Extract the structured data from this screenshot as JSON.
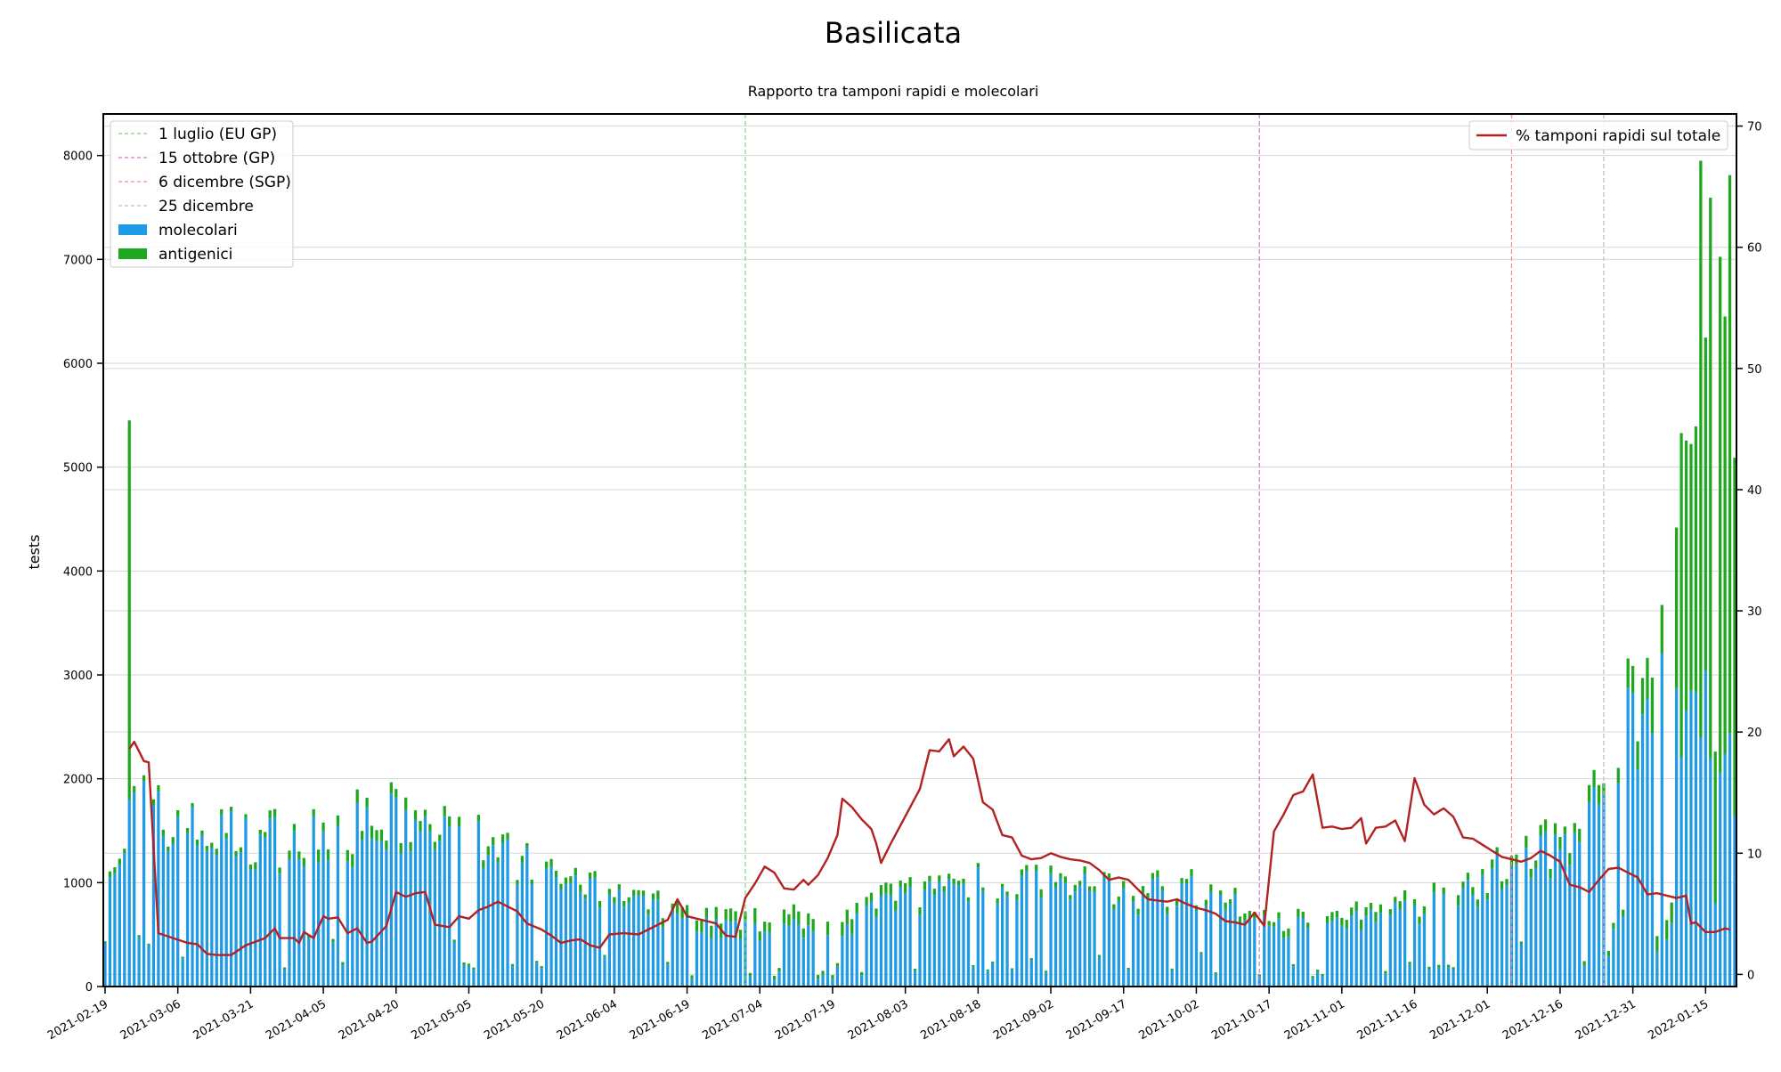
{
  "chart_data": {
    "type": "bar",
    "title": "Basilicata",
    "subtitle": "Rapporto tra tamponi rapidi e molecolari",
    "ylabel": "tests",
    "ylim": [
      0,
      8400
    ],
    "y2lim": [
      -1,
      71
    ],
    "x_start": "2021-02-19",
    "x_end": "2022-01-21",
    "xticks": [
      "2021-02-19",
      "2021-03-06",
      "2021-03-21",
      "2021-04-05",
      "2021-04-20",
      "2021-05-05",
      "2021-05-20",
      "2021-06-04",
      "2021-06-19",
      "2021-07-04",
      "2021-07-19",
      "2021-08-03",
      "2021-08-18",
      "2021-09-02",
      "2021-09-17",
      "2021-10-02",
      "2021-10-17",
      "2021-11-01",
      "2021-11-16",
      "2021-12-01",
      "2021-12-16",
      "2021-12-31",
      "2022-01-15"
    ],
    "yticks": [
      0,
      1000,
      2000,
      3000,
      4000,
      5000,
      6000,
      7000,
      8000
    ],
    "y2ticks": [
      0,
      10,
      20,
      30,
      40,
      50,
      60,
      70
    ],
    "grid": true,
    "legend_left_position": "top-left",
    "legend_right_position": "top-right",
    "vlines": [
      {
        "date": "2021-07-01",
        "label": "1 luglio (EU GP)",
        "color": "#7ccf7c"
      },
      {
        "date": "2021-10-15",
        "label": "15 ottobre (GP)",
        "color": "#c77ec7"
      },
      {
        "date": "2021-12-06",
        "label": "6 dicembre (SGP)",
        "color": "#f08a8a"
      },
      {
        "date": "2021-12-25",
        "label": "25 dicembre",
        "color": "#c9b3c9"
      }
    ],
    "series": [
      {
        "name": "molecolari",
        "color": "#1f9be6"
      },
      {
        "name": "antigenici",
        "color": "#1fa81f"
      },
      {
        "name": "% tamponi rapidi sul totale",
        "color": "#b22222"
      }
    ],
    "anchors_molecolari": [
      [
        "2021-02-19",
        1200
      ],
      [
        "2021-02-23",
        1100
      ],
      [
        "2021-02-24",
        1700
      ],
      [
        "2021-03-06",
        1450
      ],
      [
        "2021-03-21",
        1350
      ],
      [
        "2021-04-05",
        1350
      ],
      [
        "2021-04-20",
        1500
      ],
      [
        "2021-05-05",
        1350
      ],
      [
        "2021-05-20",
        1000
      ],
      [
        "2021-06-04",
        800
      ],
      [
        "2021-06-19",
        600
      ],
      [
        "2021-07-04",
        500
      ],
      [
        "2021-07-19",
        560
      ],
      [
        "2021-08-03",
        820
      ],
      [
        "2021-08-18",
        960
      ],
      [
        "2021-09-02",
        920
      ],
      [
        "2021-09-17",
        820
      ],
      [
        "2021-10-02",
        880
      ],
      [
        "2021-10-17",
        560
      ],
      [
        "2021-11-01",
        560
      ],
      [
        "2021-11-16",
        700
      ],
      [
        "2021-12-01",
        1000
      ],
      [
        "2021-12-16",
        1350
      ],
      [
        "2021-12-24",
        1800
      ],
      [
        "2021-12-31",
        2500
      ],
      [
        "2022-01-07",
        2600
      ],
      [
        "2022-01-10",
        2700
      ],
      [
        "2022-01-15",
        2500
      ],
      [
        "2022-01-21",
        2000
      ]
    ],
    "anchors_total": [
      [
        "2021-02-19",
        1250
      ],
      [
        "2021-02-23",
        1150
      ],
      [
        "2021-02-24",
        1750
      ],
      [
        "2021-03-06",
        1500
      ],
      [
        "2021-03-21",
        1400
      ],
      [
        "2021-04-05",
        1450
      ],
      [
        "2021-04-20",
        1600
      ],
      [
        "2021-05-05",
        1420
      ],
      [
        "2021-05-20",
        1060
      ],
      [
        "2021-06-04",
        850
      ],
      [
        "2021-06-19",
        700
      ],
      [
        "2021-07-04",
        620
      ],
      [
        "2021-07-19",
        680
      ],
      [
        "2021-08-03",
        900
      ],
      [
        "2021-08-18",
        1000
      ],
      [
        "2021-09-02",
        980
      ],
      [
        "2021-09-17",
        880
      ],
      [
        "2021-10-02",
        940
      ],
      [
        "2021-10-17",
        620
      ],
      [
        "2021-11-01",
        640
      ],
      [
        "2021-11-16",
        780
      ],
      [
        "2021-12-01",
        1080
      ],
      [
        "2021-12-16",
        1450
      ],
      [
        "2021-12-24",
        1950
      ],
      [
        "2021-12-31",
        2750
      ],
      [
        "2022-01-04",
        3000
      ],
      [
        "2022-01-08",
        3300
      ],
      [
        "2022-01-10",
        5300
      ],
      [
        "2022-01-13",
        6000
      ],
      [
        "2022-01-16",
        7500
      ],
      [
        "2022-01-19",
        6600
      ],
      [
        "2022-01-21",
        6000
      ]
    ],
    "special_bars": [
      {
        "date": "2021-02-24",
        "molecolari": 1800,
        "antigenici": 3650
      },
      {
        "date": "2022-01-14",
        "molecolari": 2400,
        "antigenici": 5550
      }
    ],
    "percent_line": [
      [
        "2021-02-24",
        18.6
      ],
      [
        "2021-02-25",
        19.2
      ],
      [
        "2021-02-27",
        17.6
      ],
      [
        "2021-02-28",
        17.5
      ],
      [
        "2021-03-02",
        3.4
      ],
      [
        "2021-03-05",
        3.0
      ],
      [
        "2021-03-08",
        2.6
      ],
      [
        "2021-03-10",
        2.5
      ],
      [
        "2021-03-12",
        1.7
      ],
      [
        "2021-03-14",
        1.6
      ],
      [
        "2021-03-17",
        1.6
      ],
      [
        "2021-03-20",
        2.4
      ],
      [
        "2021-03-24",
        3.0
      ],
      [
        "2021-03-26",
        3.8
      ],
      [
        "2021-03-27",
        3.0
      ],
      [
        "2021-03-30",
        3.0
      ],
      [
        "2021-03-31",
        2.6
      ],
      [
        "2021-04-01",
        3.5
      ],
      [
        "2021-04-03",
        3.0
      ],
      [
        "2021-04-05",
        4.8
      ],
      [
        "2021-04-06",
        4.6
      ],
      [
        "2021-04-08",
        4.7
      ],
      [
        "2021-04-10",
        3.4
      ],
      [
        "2021-04-12",
        3.8
      ],
      [
        "2021-04-14",
        2.6
      ],
      [
        "2021-04-15",
        2.7
      ],
      [
        "2021-04-18",
        4.0
      ],
      [
        "2021-04-20",
        6.8
      ],
      [
        "2021-04-22",
        6.4
      ],
      [
        "2021-04-24",
        6.7
      ],
      [
        "2021-04-26",
        6.8
      ],
      [
        "2021-04-28",
        4.1
      ],
      [
        "2021-05-01",
        3.9
      ],
      [
        "2021-05-03",
        4.8
      ],
      [
        "2021-05-05",
        4.6
      ],
      [
        "2021-05-07",
        5.3
      ],
      [
        "2021-05-09",
        5.6
      ],
      [
        "2021-05-11",
        6.0
      ],
      [
        "2021-05-13",
        5.6
      ],
      [
        "2021-05-15",
        5.2
      ],
      [
        "2021-05-17",
        4.2
      ],
      [
        "2021-05-20",
        3.7
      ],
      [
        "2021-05-22",
        3.2
      ],
      [
        "2021-05-24",
        2.6
      ],
      [
        "2021-05-26",
        2.8
      ],
      [
        "2021-05-28",
        2.9
      ],
      [
        "2021-05-30",
        2.4
      ],
      [
        "2021-06-01",
        2.2
      ],
      [
        "2021-06-03",
        3.3
      ],
      [
        "2021-06-06",
        3.4
      ],
      [
        "2021-06-09",
        3.3
      ],
      [
        "2021-06-11",
        3.7
      ],
      [
        "2021-06-13",
        4.1
      ],
      [
        "2021-06-15",
        4.5
      ],
      [
        "2021-06-17",
        6.2
      ],
      [
        "2021-06-19",
        4.8
      ],
      [
        "2021-06-21",
        4.6
      ],
      [
        "2021-06-23",
        4.4
      ],
      [
        "2021-06-25",
        4.2
      ],
      [
        "2021-06-27",
        3.2
      ],
      [
        "2021-06-29",
        3.1
      ],
      [
        "2021-07-01",
        6.3
      ],
      [
        "2021-07-03",
        7.5
      ],
      [
        "2021-07-05",
        8.9
      ],
      [
        "2021-07-07",
        8.4
      ],
      [
        "2021-07-09",
        7.1
      ],
      [
        "2021-07-11",
        7.0
      ],
      [
        "2021-07-13",
        7.8
      ],
      [
        "2021-07-14",
        7.4
      ],
      [
        "2021-07-16",
        8.2
      ],
      [
        "2021-07-18",
        9.6
      ],
      [
        "2021-07-20",
        11.5
      ],
      [
        "2021-07-21",
        14.5
      ],
      [
        "2021-07-23",
        13.8
      ],
      [
        "2021-07-25",
        12.8
      ],
      [
        "2021-07-27",
        12.0
      ],
      [
        "2021-07-28",
        10.8
      ],
      [
        "2021-07-29",
        9.2
      ],
      [
        "2021-07-31",
        10.8
      ],
      [
        "2021-08-02",
        12.3
      ],
      [
        "2021-08-04",
        13.8
      ],
      [
        "2021-08-06",
        15.3
      ],
      [
        "2021-08-08",
        18.5
      ],
      [
        "2021-08-10",
        18.4
      ],
      [
        "2021-08-12",
        19.4
      ],
      [
        "2021-08-13",
        18.0
      ],
      [
        "2021-08-15",
        18.8
      ],
      [
        "2021-08-17",
        17.8
      ],
      [
        "2021-08-19",
        14.2
      ],
      [
        "2021-08-21",
        13.6
      ],
      [
        "2021-08-23",
        11.5
      ],
      [
        "2021-08-25",
        11.3
      ],
      [
        "2021-08-27",
        9.8
      ],
      [
        "2021-08-29",
        9.5
      ],
      [
        "2021-08-31",
        9.6
      ],
      [
        "2021-09-02",
        10.0
      ],
      [
        "2021-09-04",
        9.7
      ],
      [
        "2021-09-06",
        9.5
      ],
      [
        "2021-09-08",
        9.4
      ],
      [
        "2021-09-10",
        9.2
      ],
      [
        "2021-09-12",
        8.6
      ],
      [
        "2021-09-14",
        7.8
      ],
      [
        "2021-09-16",
        8.0
      ],
      [
        "2021-09-18",
        7.8
      ],
      [
        "2021-09-20",
        7.0
      ],
      [
        "2021-09-22",
        6.2
      ],
      [
        "2021-09-24",
        6.1
      ],
      [
        "2021-09-26",
        6.0
      ],
      [
        "2021-09-28",
        6.2
      ],
      [
        "2021-09-30",
        5.8
      ],
      [
        "2021-10-02",
        5.5
      ],
      [
        "2021-10-04",
        5.3
      ],
      [
        "2021-10-06",
        5.0
      ],
      [
        "2021-10-08",
        4.4
      ],
      [
        "2021-10-10",
        4.3
      ],
      [
        "2021-10-12",
        4.1
      ],
      [
        "2021-10-14",
        5.1
      ],
      [
        "2021-10-16",
        4.0
      ],
      [
        "2021-10-18",
        11.8
      ],
      [
        "2021-10-20",
        13.2
      ],
      [
        "2021-10-22",
        14.8
      ],
      [
        "2021-10-24",
        15.1
      ],
      [
        "2021-10-26",
        16.5
      ],
      [
        "2021-10-28",
        12.1
      ],
      [
        "2021-10-30",
        12.2
      ],
      [
        "2021-11-01",
        12.0
      ],
      [
        "2021-11-03",
        12.1
      ],
      [
        "2021-11-05",
        12.9
      ],
      [
        "2021-11-06",
        10.8
      ],
      [
        "2021-11-08",
        12.1
      ],
      [
        "2021-11-10",
        12.2
      ],
      [
        "2021-11-12",
        12.7
      ],
      [
        "2021-11-14",
        11.0
      ],
      [
        "2021-11-16",
        16.2
      ],
      [
        "2021-11-18",
        14.0
      ],
      [
        "2021-11-20",
        13.2
      ],
      [
        "2021-11-22",
        13.7
      ],
      [
        "2021-11-24",
        13.0
      ],
      [
        "2021-11-26",
        11.3
      ],
      [
        "2021-11-28",
        11.2
      ],
      [
        "2021-11-30",
        10.7
      ],
      [
        "2021-12-02",
        10.2
      ],
      [
        "2021-12-04",
        9.7
      ],
      [
        "2021-12-06",
        9.5
      ],
      [
        "2021-12-08",
        9.3
      ],
      [
        "2021-12-10",
        9.6
      ],
      [
        "2021-12-12",
        10.2
      ],
      [
        "2021-12-14",
        9.8
      ],
      [
        "2021-12-16",
        9.3
      ],
      [
        "2021-12-18",
        7.4
      ],
      [
        "2021-12-20",
        7.2
      ],
      [
        "2021-12-22",
        6.8
      ],
      [
        "2021-12-24",
        7.8
      ],
      [
        "2021-12-26",
        8.7
      ],
      [
        "2021-12-28",
        8.8
      ],
      [
        "2021-12-30",
        8.4
      ],
      [
        "2022-01-01",
        8.0
      ],
      [
        "2022-01-03",
        6.6
      ],
      [
        "2022-01-05",
        6.7
      ],
      [
        "2022-01-07",
        6.5
      ],
      [
        "2022-01-09",
        6.3
      ],
      [
        "2022-01-11",
        6.5
      ],
      [
        "2022-01-12",
        4.2
      ],
      [
        "2022-01-13",
        4.3
      ],
      [
        "2022-01-15",
        3.5
      ],
      [
        "2022-01-17",
        3.5
      ],
      [
        "2022-01-19",
        3.8
      ],
      [
        "2022-01-20",
        3.7
      ]
    ]
  }
}
